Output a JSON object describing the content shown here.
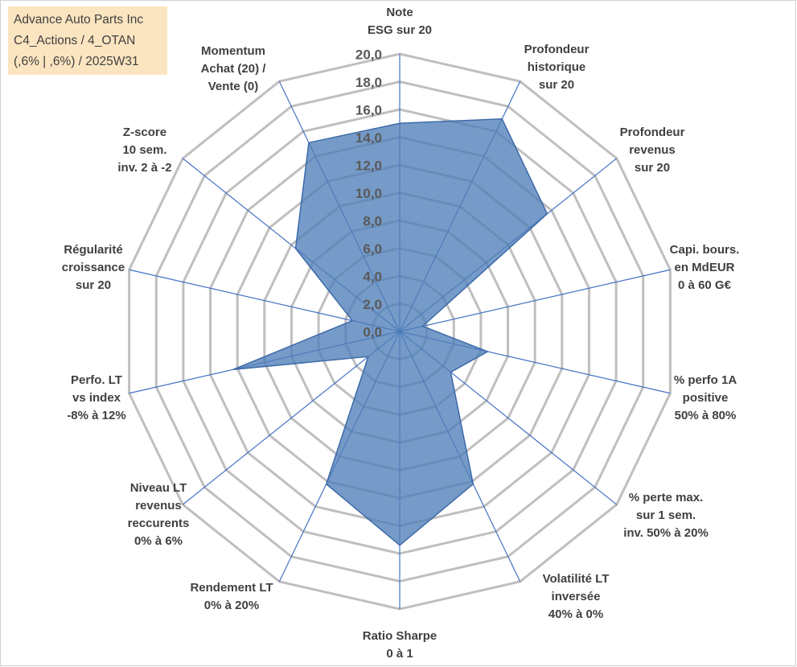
{
  "chart_data": {
    "type": "radar",
    "title": [
      "Advance Auto Parts Inc",
      "C4_Actions / 4_OTAN",
      "(,6% | ,6%) / 2025W31"
    ],
    "categories": [
      [
        "Note",
        "ESG sur 20"
      ],
      [
        "Profondeur",
        "historique",
        "sur 20"
      ],
      [
        "Profondeur",
        "revenus",
        "sur 20"
      ],
      [
        "Capi. bours.",
        "en MdEUR",
        "0 à 60 G€"
      ],
      [
        "% perfo 1A",
        "positive",
        "50% à 80%"
      ],
      [
        "% perte max.",
        "sur 1 sem.",
        "inv. 50% à 20%"
      ],
      [
        "Volatilité LT",
        "inversée",
        "40% à 0%"
      ],
      [
        "Ratio Sharpe",
        "0 à 1"
      ],
      [
        "Rendement LT",
        "0% à 20%"
      ],
      [
        "Niveau LT",
        "revenus",
        "reccurents",
        "0% à 6%"
      ],
      [
        "Perfo. LT",
        "vs index",
        "-8% à 12%"
      ],
      [
        "Régularité",
        "croissance",
        "sur 20"
      ],
      [
        "Z-score",
        "10 sem.",
        "inv. 2 à -2"
      ],
      [
        "Momentum",
        "Achat (20) /",
        "Vente (0)"
      ]
    ],
    "values": [
      15,
      17,
      13.6,
      1.7,
      6.5,
      4.7,
      12.2,
      15.4,
      12.2,
      2.9,
      12.3,
      3.5,
      9.6,
      15.1
    ],
    "color": "#4f7fb8",
    "axis_color": "#4472c4",
    "grid": true,
    "ylim": [
      0,
      20
    ],
    "yticks": [
      {
        "value": 0,
        "label": "0,0"
      },
      {
        "value": 2,
        "label": "2,0"
      },
      {
        "value": 4,
        "label": "4,0"
      },
      {
        "value": 6,
        "label": "6,0"
      },
      {
        "value": 8,
        "label": "8,0"
      },
      {
        "value": 10,
        "label": "10,0"
      },
      {
        "value": 12,
        "label": "12,0"
      },
      {
        "value": 14,
        "label": "14,0"
      },
      {
        "value": 16,
        "label": "16,0"
      },
      {
        "value": 18,
        "label": "18,0"
      },
      {
        "value": 20,
        "label": "20,0"
      }
    ]
  }
}
